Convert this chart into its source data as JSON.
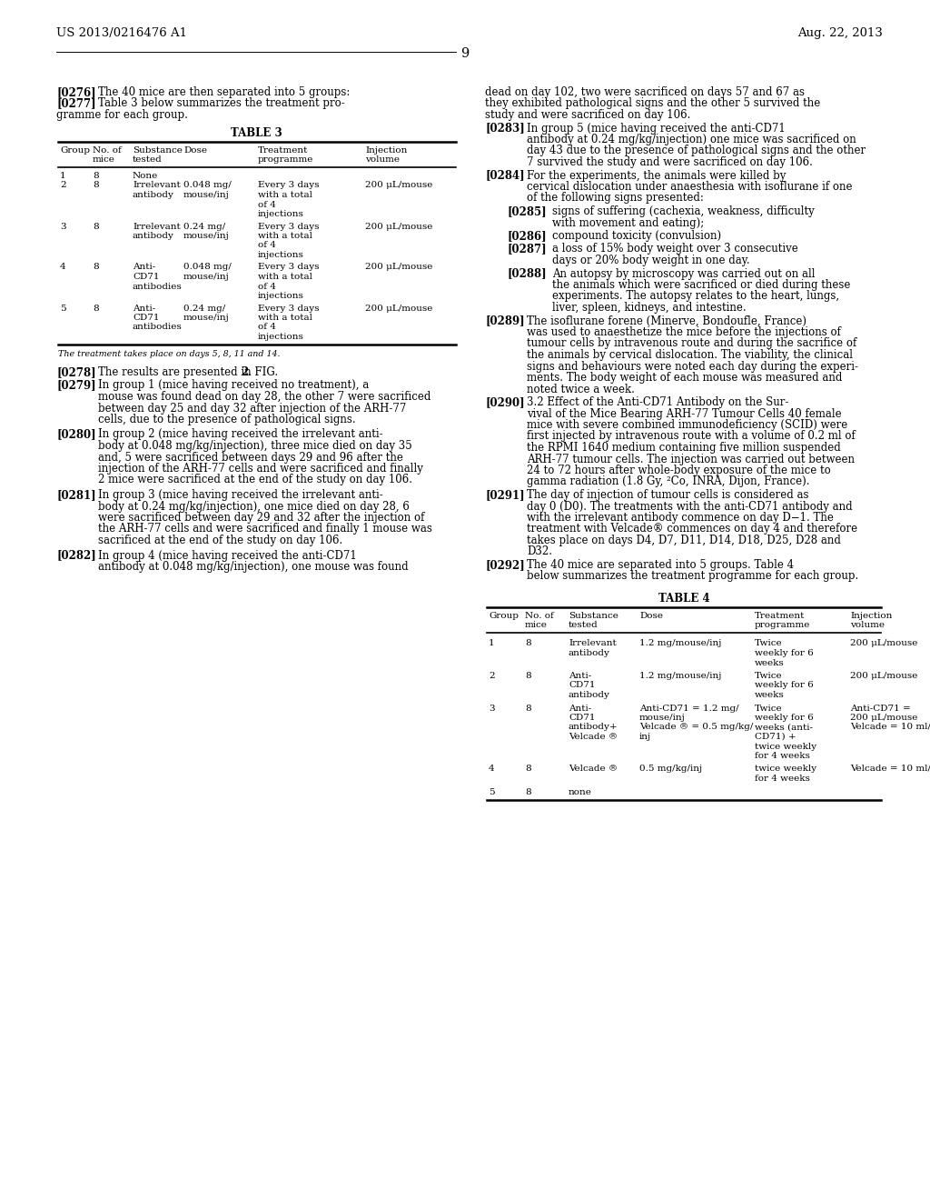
{
  "page_number": "9",
  "patent_number": "US 2013/0216476 A1",
  "patent_date": "Aug. 22, 2013",
  "background_color": "#ffffff"
}
